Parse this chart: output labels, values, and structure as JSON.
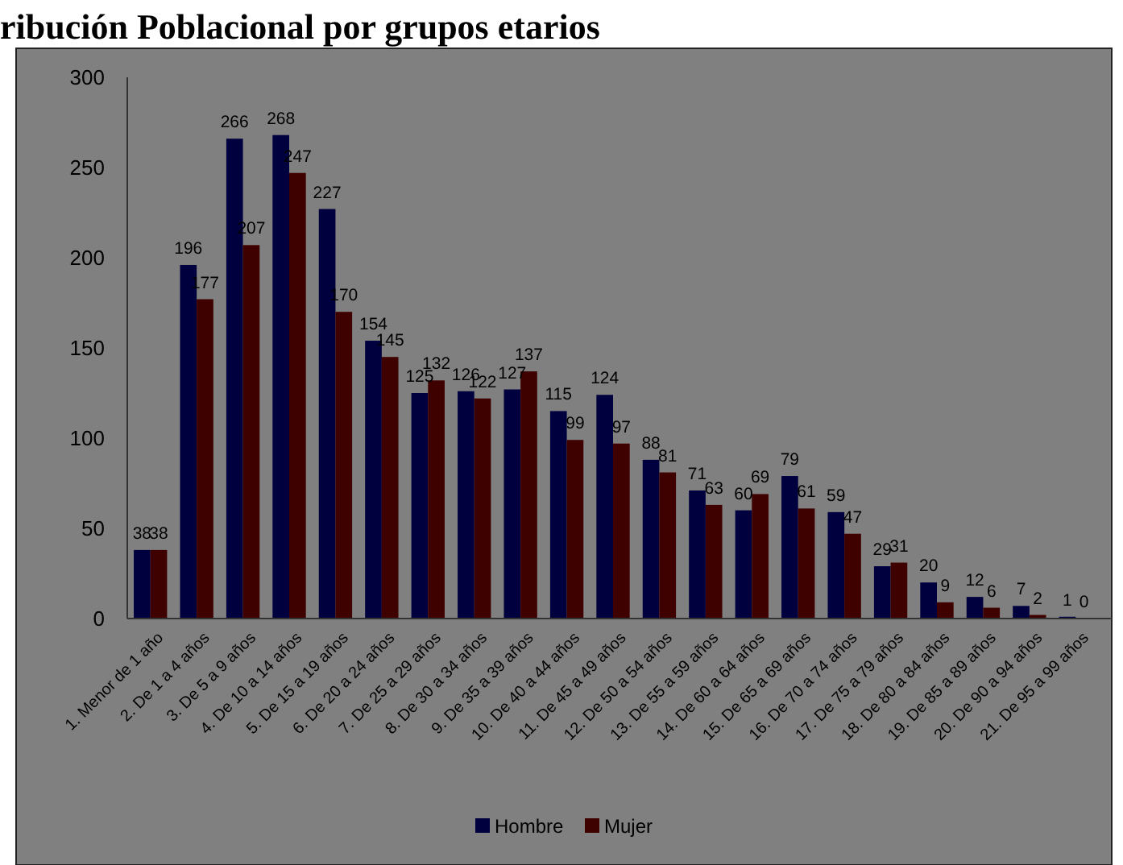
{
  "chart_data": {
    "type": "bar",
    "title": "ribución Poblacional por grupos etarios",
    "categories": [
      "1. Menor de 1 año",
      "2. De 1 a 4 años",
      "3. De 5 a 9 años",
      "4. De 10 a 14 años",
      "5. De 15 a 19 años",
      "6. De 20 a 24 años",
      "7. De 25 a 29 años",
      "8. De 30 a 34 años",
      "9. De 35 a 39 años",
      "10. De 40 a 44 años",
      "11. De 45 a 49 años",
      "12. De 50 a 54 años",
      "13. De 55 a 59 años",
      "14. De 60 a 64 años",
      "15. De 65 a 69 años",
      "16. De 70 a 74 años",
      "17. De 75 a 79 años",
      "18. De 80 a 84 años",
      "19. De 85 a 89 años",
      "20. De 90 a 94 años",
      "21. De 95 a 99 años"
    ],
    "series": [
      {
        "name": "Hombre",
        "color": "#00003f",
        "values": [
          38,
          196,
          266,
          268,
          227,
          154,
          125,
          126,
          127,
          115,
          124,
          88,
          71,
          60,
          79,
          59,
          29,
          20,
          12,
          7,
          1
        ]
      },
      {
        "name": "Mujer",
        "color": "#3f0000",
        "values": [
          38,
          177,
          207,
          247,
          170,
          145,
          132,
          122,
          137,
          99,
          97,
          81,
          63,
          69,
          61,
          47,
          31,
          9,
          6,
          2,
          0
        ]
      }
    ],
    "ylim": [
      0,
      300
    ],
    "yticks": [
      0,
      50,
      100,
      150,
      200,
      250,
      300
    ],
    "data_labels": true,
    "legend": "bottom",
    "grid": false
  }
}
